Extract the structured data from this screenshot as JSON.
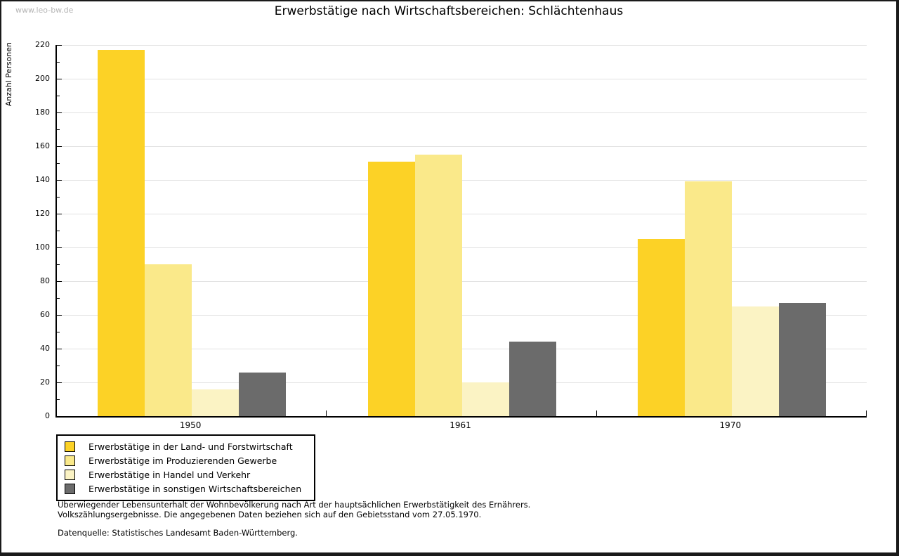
{
  "watermark": "www.leo-bw.de",
  "title": "Erwerbstätige nach Wirtschaftsbereichen: Schlächtenhaus",
  "chart_data": {
    "type": "bar",
    "title": "Erwerbstätige nach Wirtschaftsbereichen: Schlächtenhaus",
    "xlabel": "",
    "ylabel": "Anzahl Personen",
    "ylim": [
      0,
      220
    ],
    "ytick_step": 20,
    "yminor_step": 10,
    "grid": true,
    "legend_position": "bottom-left",
    "categories": [
      "1950",
      "1961",
      "1970"
    ],
    "series": [
      {
        "name": "Erwerbstätige in der Land- und Forstwirtschaft",
        "slug": "land-und-forstwirtschaft",
        "color": "#fcd226",
        "values": [
          217,
          151,
          105
        ]
      },
      {
        "name": "Erwerbstätige im Produzierenden Gewerbe",
        "slug": "produzierendes-gewerbe",
        "color": "#fae98a",
        "values": [
          90,
          155,
          139
        ]
      },
      {
        "name": "Erwerbstätige in Handel und Verkehr",
        "slug": "handel-und-verkehr",
        "color": "#fbf3c4",
        "values": [
          16,
          20,
          65
        ]
      },
      {
        "name": "Erwerbstätige in sonstigen Wirtschaftsbereichen",
        "slug": "sonstige-wirtschaftsbereiche",
        "color": "#6b6b6b",
        "values": [
          26,
          44,
          67
        ]
      }
    ]
  },
  "footnotes": {
    "line1": "Überwiegender Lebensunterhalt der Wohnbevölkerung nach Art der hauptsächlichen Erwerbstätigkeit des Ernährers.",
    "line2": "Volkszählungsergebnisse. Die angegebenen Daten beziehen sich auf den Gebietsstand vom 27.05.1970.",
    "source": "Datenquelle: Statistisches Landesamt Baden-Württemberg."
  }
}
